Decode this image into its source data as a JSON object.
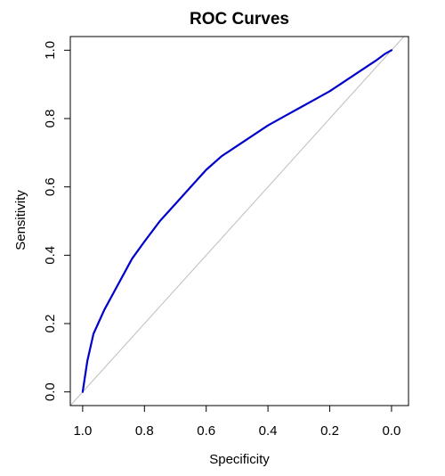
{
  "chart_data": {
    "type": "line",
    "title": "ROC Curves",
    "xlabel": "Specificity",
    "ylabel": "Sensitivity",
    "xlim": [
      1.04,
      -0.055
    ],
    "ylim": [
      -0.04,
      1.04
    ],
    "x_reversed": true,
    "x_ticks": [
      1.0,
      0.8,
      0.6,
      0.4,
      0.2,
      0.0
    ],
    "x_tick_labels": [
      "1.0",
      "0.8",
      "0.6",
      "0.4",
      "0.2",
      "0.0"
    ],
    "y_ticks": [
      0.0,
      0.2,
      0.4,
      0.6,
      0.8,
      1.0
    ],
    "y_tick_labels": [
      "0.0",
      "0.2",
      "0.4",
      "0.6",
      "0.8",
      "1.0"
    ],
    "grid": false,
    "reference_line": {
      "from": [
        1.0,
        0.0
      ],
      "to": [
        0.0,
        1.0
      ],
      "color": "#bdbdbd"
    },
    "series": [
      {
        "color": "#0000cc",
        "x": [
          1.0,
          0.995,
          0.99,
          0.985,
          0.975,
          0.965,
          0.95,
          0.93,
          0.9,
          0.87,
          0.84,
          0.8,
          0.75,
          0.7,
          0.65,
          0.6,
          0.55,
          0.5,
          0.45,
          0.4,
          0.35,
          0.3,
          0.25,
          0.2,
          0.15,
          0.1,
          0.05,
          0.02,
          0.0
        ],
        "y": [
          0.0,
          0.03,
          0.06,
          0.09,
          0.13,
          0.17,
          0.2,
          0.24,
          0.29,
          0.34,
          0.39,
          0.44,
          0.5,
          0.55,
          0.6,
          0.65,
          0.69,
          0.72,
          0.75,
          0.78,
          0.805,
          0.83,
          0.855,
          0.88,
          0.91,
          0.94,
          0.97,
          0.99,
          1.0
        ]
      }
    ]
  }
}
